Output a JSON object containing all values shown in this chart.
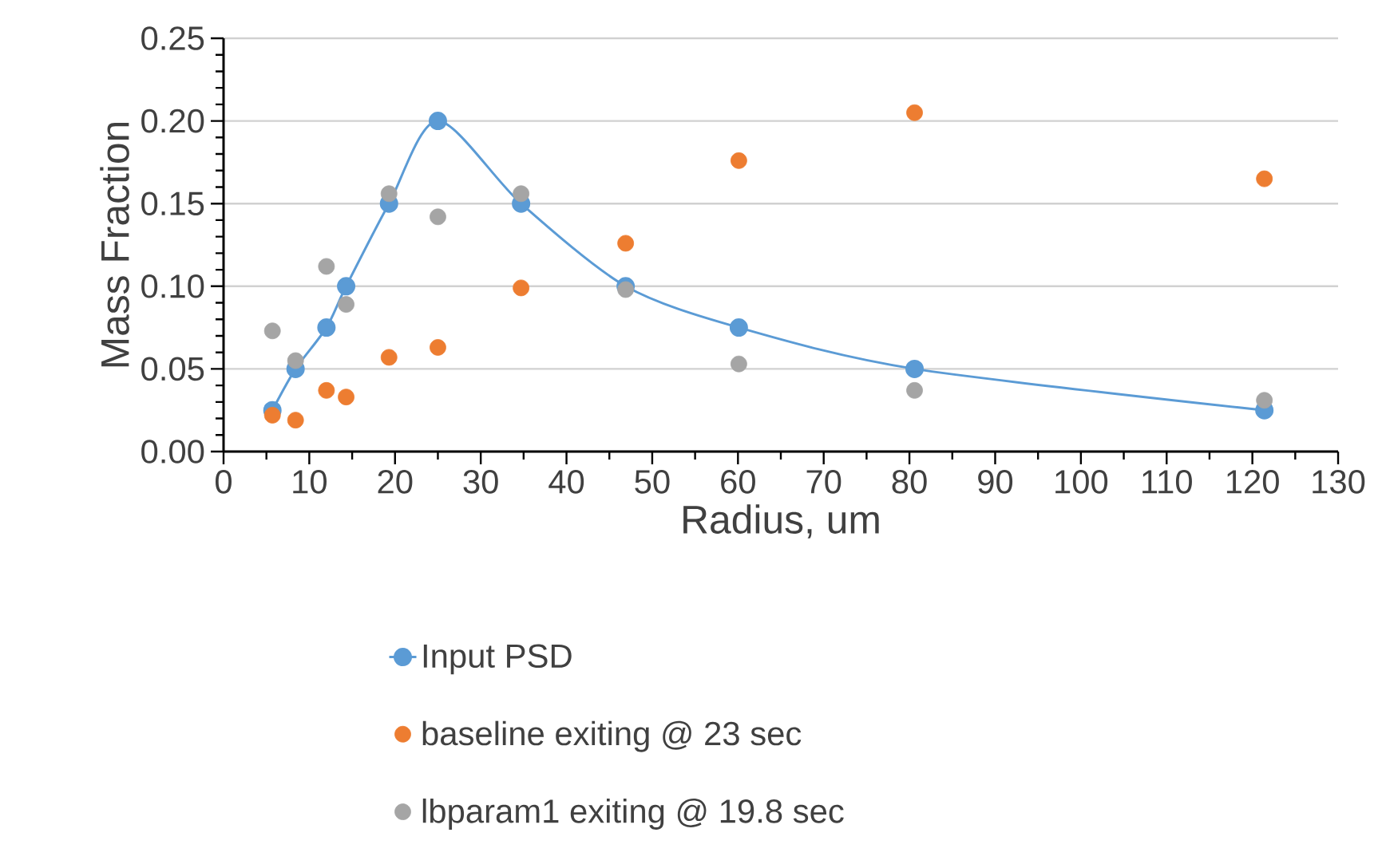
{
  "chart_data": {
    "type": "line",
    "xlabel": "Radius, um",
    "ylabel": "Mass Fraction",
    "x": [
      5.7,
      8.4,
      12.0,
      14.3,
      19.3,
      25.0,
      34.7,
      46.9,
      60.1,
      80.6,
      121.4
    ],
    "series": [
      {
        "name": "Input PSD",
        "color": "#5b9bd5",
        "values": [
          0.025,
          0.05,
          0.075,
          0.1,
          0.15,
          0.2,
          0.15,
          0.1,
          0.075,
          0.05,
          0.025
        ]
      },
      {
        "name": "baseline exiting @ 23 sec",
        "type": "scatter",
        "color": "#ed7d31",
        "values": [
          0.022,
          0.019,
          0.037,
          0.033,
          0.057,
          0.063,
          0.099,
          0.126,
          0.176,
          0.205,
          0.165
        ]
      },
      {
        "name": "lbparam1 exiting @ 19.8 sec",
        "type": "scatter",
        "color": "#a5a5a5",
        "values": [
          0.073,
          0.055,
          0.112,
          0.089,
          0.156,
          0.142,
          0.156,
          0.098,
          0.053,
          0.037,
          0.031
        ]
      }
    ],
    "xlim": [
      0,
      130
    ],
    "xticks": [
      0,
      10,
      20,
      30,
      40,
      50,
      60,
      70,
      80,
      90,
      100,
      110,
      120,
      130
    ],
    "ylim": [
      0,
      0.25
    ],
    "yticks": [
      {
        "value": 0,
        "label": "0.00"
      },
      {
        "value": 0.05,
        "label": "0.05"
      },
      {
        "value": 0.1,
        "label": "0.10"
      },
      {
        "value": 0.15,
        "label": "0.15"
      },
      {
        "value": 0.2,
        "label": "0.20"
      },
      {
        "value": 0.25,
        "label": "0.25"
      }
    ],
    "grid": "y",
    "legend": "bottom",
    "marker": "circle"
  }
}
